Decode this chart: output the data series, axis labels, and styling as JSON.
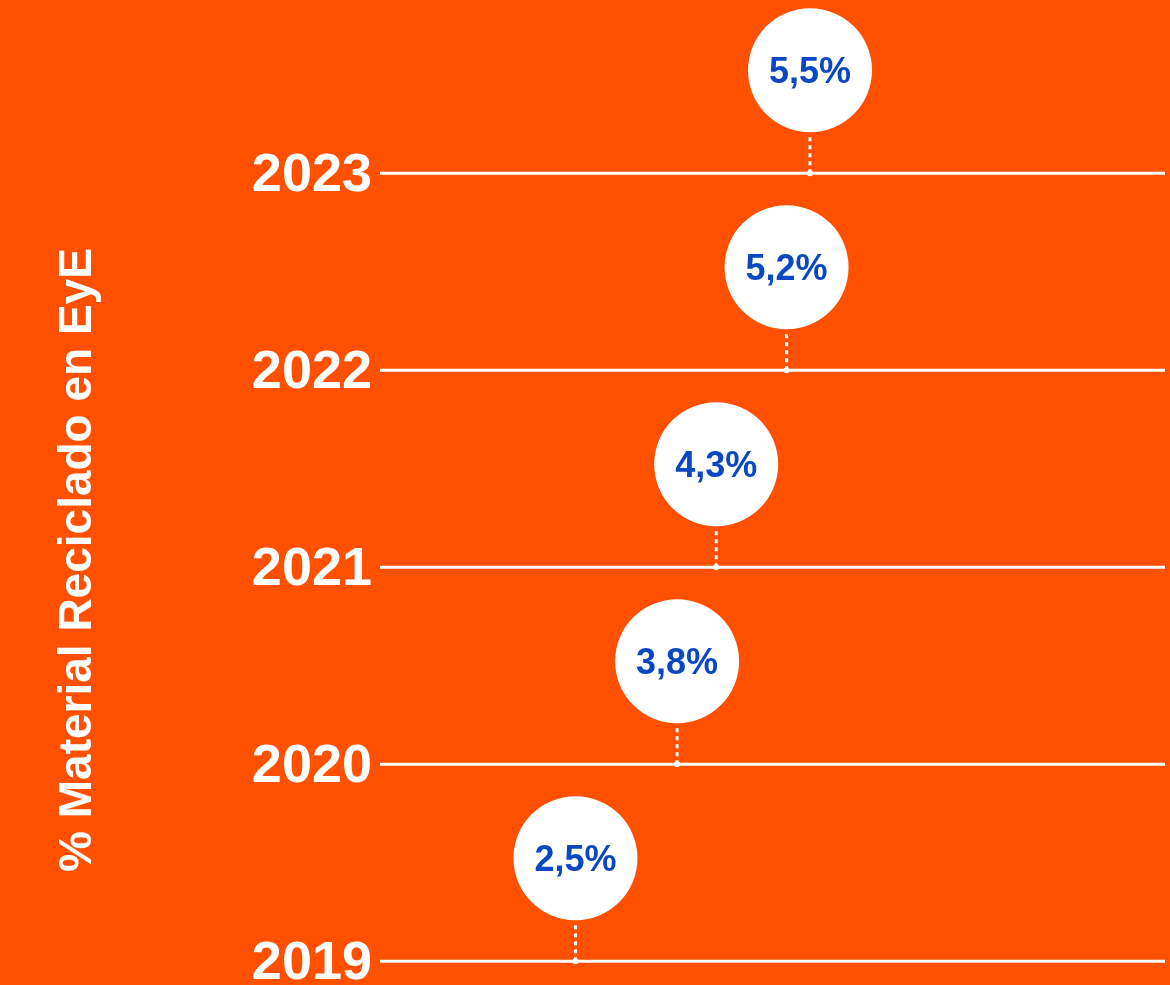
{
  "chart_data": {
    "type": "lollipop",
    "orientation": "horizontal",
    "ylabel": "% Material Reciclado en EyE",
    "categories": [
      "2023",
      "2022",
      "2021",
      "2020",
      "2019"
    ],
    "values": [
      5.5,
      5.2,
      4.3,
      3.8,
      2.5
    ],
    "value_labels": [
      "5,5%",
      "5,2%",
      "4,3%",
      "3,8%",
      "2,5%"
    ],
    "color": "#ffffff",
    "grid": true
  }
}
